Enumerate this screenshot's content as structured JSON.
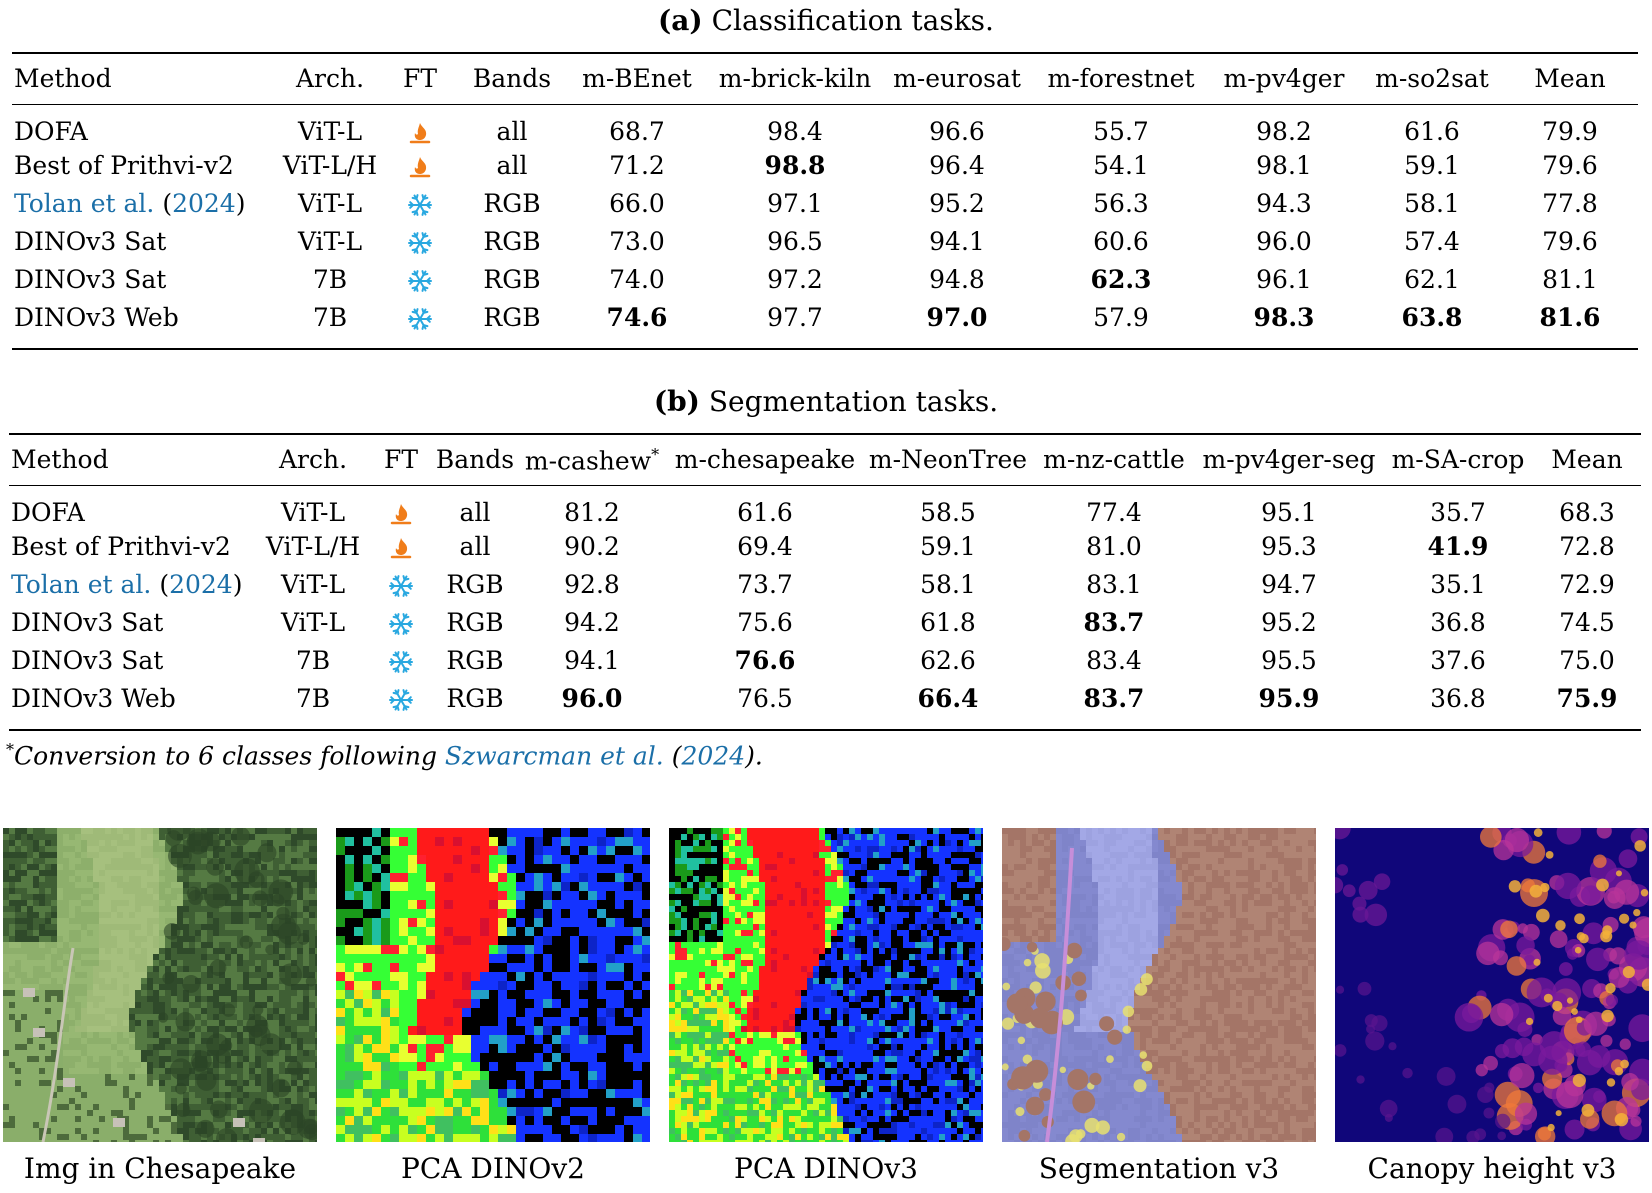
{
  "classification": {
    "caption_label": "(a)",
    "caption_text": "Classification tasks.",
    "headers": [
      "Method",
      "Arch.",
      "FT",
      "Bands",
      "m-BEnet",
      "m-brick-kiln",
      "m-eurosat",
      "m-forestnet",
      "m-pv4ger",
      "m-so2sat",
      "Mean"
    ],
    "rows": [
      {
        "method": "DOFA",
        "arch": "ViT-L",
        "ft": "fire-icon",
        "bands": "all",
        "vals": [
          "68.7",
          "98.4",
          "96.6",
          "55.7",
          "98.2",
          "61.6",
          "79.9"
        ],
        "bold": []
      },
      {
        "method": "Best of Prithvi-v2",
        "arch": "ViT-L/H",
        "ft": "fire-icon",
        "bands": "all",
        "vals": [
          "71.2",
          "98.8",
          "96.4",
          "54.1",
          "98.1",
          "59.1",
          "79.6"
        ],
        "bold": [
          1
        ]
      },
      {
        "method_cite": "Tolan et al.",
        "method_paren_open": "(",
        "method_year": "2024",
        "method_paren_close": ")",
        "arch": "ViT-L",
        "ft": "snowflake-icon",
        "bands": "RGB",
        "vals": [
          "66.0",
          "97.1",
          "95.2",
          "56.3",
          "94.3",
          "58.1",
          "77.8"
        ],
        "bold": []
      },
      {
        "method": "DINOv3 Sat",
        "arch": "ViT-L",
        "ft": "snowflake-icon",
        "bands": "RGB",
        "vals": [
          "73.0",
          "96.5",
          "94.1",
          "60.6",
          "96.0",
          "57.4",
          "79.6"
        ],
        "bold": []
      },
      {
        "method": "DINOv3 Sat",
        "arch": "7B",
        "ft": "snowflake-icon",
        "bands": "RGB",
        "vals": [
          "74.0",
          "97.2",
          "94.8",
          "62.3",
          "96.1",
          "62.1",
          "81.1"
        ],
        "bold": [
          3
        ]
      },
      {
        "method": "DINOv3 Web",
        "arch": "7B",
        "ft": "snowflake-icon",
        "bands": "RGB",
        "vals": [
          "74.6",
          "97.7",
          "97.0",
          "57.9",
          "98.3",
          "63.8",
          "81.6"
        ],
        "bold": [
          0,
          2,
          4,
          5,
          6
        ]
      }
    ]
  },
  "segmentation": {
    "caption_label": "(b)",
    "caption_text": "Segmentation tasks.",
    "headers": [
      "Method",
      "Arch.",
      "FT",
      "Bands",
      "m-cashew",
      "m-chesapeake",
      "m-NeonTree",
      "m-nz-cattle",
      "m-pv4ger-seg",
      "m-SA-crop",
      "Mean"
    ],
    "cashew_mark": "*",
    "rows": [
      {
        "method": "DOFA",
        "arch": "ViT-L",
        "ft": "fire-icon",
        "bands": "all",
        "vals": [
          "81.2",
          "61.6",
          "58.5",
          "77.4",
          "95.1",
          "35.7",
          "68.3"
        ],
        "bold": []
      },
      {
        "method": "Best of Prithvi-v2",
        "arch": "ViT-L/H",
        "ft": "fire-icon",
        "bands": "all",
        "vals": [
          "90.2",
          "69.4",
          "59.1",
          "81.0",
          "95.3",
          "41.9",
          "72.8"
        ],
        "bold": [
          5
        ]
      },
      {
        "method_cite": "Tolan et al.",
        "method_paren_open": "(",
        "method_year": "2024",
        "method_paren_close": ")",
        "arch": "ViT-L",
        "ft": "snowflake-icon",
        "bands": "RGB",
        "vals": [
          "92.8",
          "73.7",
          "58.1",
          "83.1",
          "94.7",
          "35.1",
          "72.9"
        ],
        "bold": []
      },
      {
        "method": "DINOv3 Sat",
        "arch": "ViT-L",
        "ft": "snowflake-icon",
        "bands": "RGB",
        "vals": [
          "94.2",
          "75.6",
          "61.8",
          "83.7",
          "95.2",
          "36.8",
          "74.5"
        ],
        "bold": [
          3
        ]
      },
      {
        "method": "DINOv3 Sat",
        "arch": "7B",
        "ft": "snowflake-icon",
        "bands": "RGB",
        "vals": [
          "94.1",
          "76.6",
          "62.6",
          "83.4",
          "95.5",
          "37.6",
          "75.0"
        ],
        "bold": [
          1
        ]
      },
      {
        "method": "DINOv3 Web",
        "arch": "7B",
        "ft": "snowflake-icon",
        "bands": "RGB",
        "vals": [
          "96.0",
          "76.5",
          "66.4",
          "83.7",
          "95.9",
          "36.8",
          "75.9"
        ],
        "bold": [
          0,
          2,
          3,
          4,
          6
        ]
      }
    ]
  },
  "footnote": {
    "mark": "*",
    "text": "Conversion to 6 classes following ",
    "cite": "Szwarcman et al.",
    "paren_open": "(",
    "year": "2024",
    "paren_close": ").",
    "space": " "
  },
  "panels": [
    {
      "label": "Img in Chesapeake",
      "kind": "aerial"
    },
    {
      "label": "PCA DINOv2",
      "kind": "pca-v2"
    },
    {
      "label": "PCA DINOv3",
      "kind": "pca-v3"
    },
    {
      "label": "Segmentation v3",
      "kind": "segmentation"
    },
    {
      "label": "Canopy height v3",
      "kind": "canopy"
    }
  ],
  "colors": {
    "fire": "#f07d1a",
    "snow": "#29a8e0",
    "cite": "#1b6fa8"
  }
}
